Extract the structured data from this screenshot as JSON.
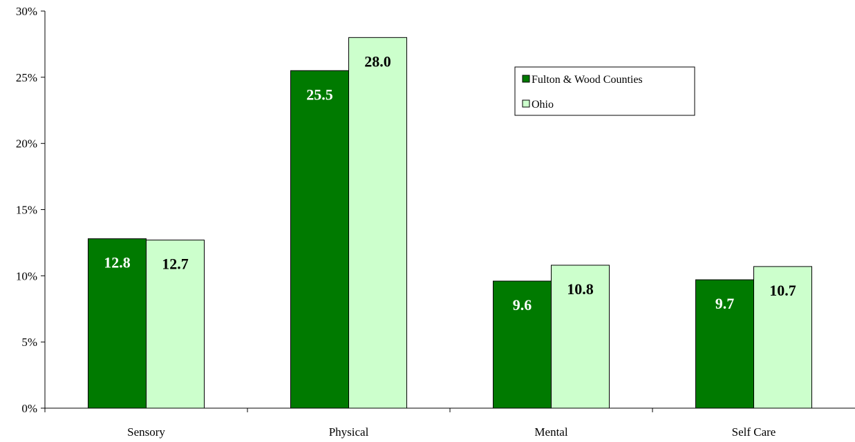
{
  "chart_data": {
    "type": "bar",
    "categories": [
      "Sensory",
      "Physical",
      "Mental",
      "Self Care"
    ],
    "series": [
      {
        "name": "Fulton & Wood Counties",
        "values": [
          12.8,
          25.5,
          9.6,
          9.7
        ],
        "color": "#007a00",
        "label_color": "#ffffff"
      },
      {
        "name": "Ohio",
        "values": [
          12.7,
          28.0,
          10.8,
          10.7
        ],
        "color": "#ccffcc",
        "label_color": "#000000"
      }
    ],
    "value_labels": [
      [
        "12.8",
        "25.5",
        "9.6",
        "9.7"
      ],
      [
        "12.7",
        "28.0",
        "10.8",
        "10.7"
      ]
    ],
    "yticks": [
      "0%",
      "5%",
      "10%",
      "15%",
      "20%",
      "25%",
      "30%"
    ],
    "ylim": [
      0,
      30
    ],
    "title": "",
    "xlabel": "",
    "ylabel": "",
    "grid": false,
    "legend_position": "top-right"
  }
}
